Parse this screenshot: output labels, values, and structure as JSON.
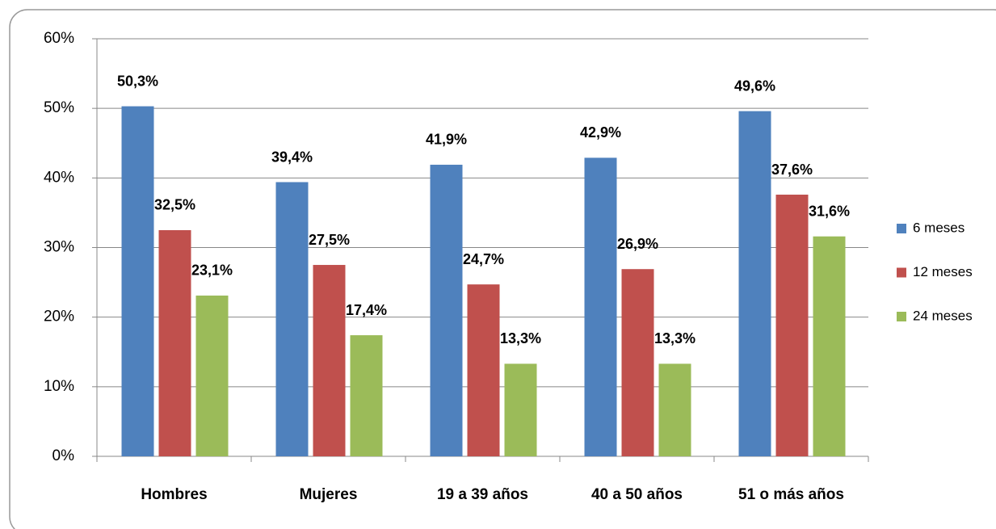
{
  "chart_data": {
    "type": "bar",
    "categories": [
      "Hombres",
      "Mujeres",
      "19 a 39 años",
      "40 a 50 años",
      "51 o más años"
    ],
    "series": [
      {
        "name": "6 meses",
        "color": "#4f81bd",
        "values": [
          50.3,
          39.4,
          41.9,
          42.9,
          49.6
        ],
        "value_labels": [
          "50,3%",
          "39,4%",
          "41,9%",
          "42,9%",
          "49,6%"
        ]
      },
      {
        "name": "12 meses",
        "color": "#c0504d",
        "values": [
          32.5,
          27.5,
          24.7,
          26.9,
          37.6
        ],
        "value_labels": [
          "32,5%",
          "27,5%",
          "24,7%",
          "26,9%",
          "37,6%"
        ]
      },
      {
        "name": "24 meses",
        "color": "#9bbb59",
        "values": [
          23.1,
          17.4,
          13.3,
          13.3,
          31.6
        ],
        "value_labels": [
          "23,1%",
          "17,4%",
          "13,3%",
          "13,3%",
          "31,6%"
        ]
      }
    ],
    "ylim": [
      0,
      60
    ],
    "yticks": [
      {
        "value": 0,
        "label": "0%"
      },
      {
        "value": 10,
        "label": "10%"
      },
      {
        "value": 20,
        "label": "20%"
      },
      {
        "value": 30,
        "label": "30%"
      },
      {
        "value": 40,
        "label": "40%"
      },
      {
        "value": 50,
        "label": "50%"
      },
      {
        "value": 60,
        "label": "60%"
      }
    ],
    "grid": true,
    "legend": "right"
  }
}
